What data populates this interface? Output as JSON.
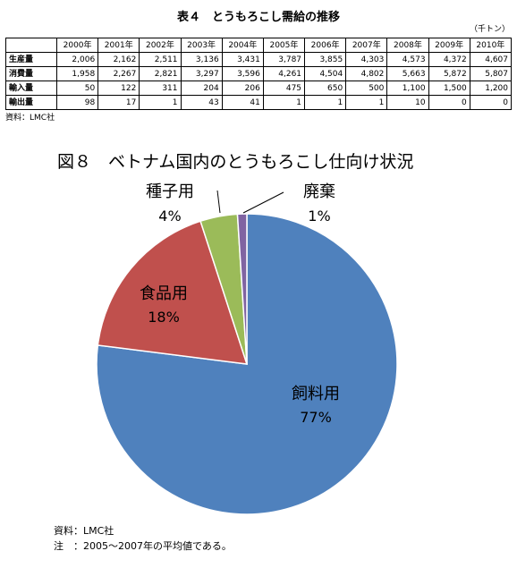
{
  "table": {
    "title": "表４　とうもろこし需給の推移",
    "unit": "（千トン）",
    "years": [
      "2000年",
      "2001年",
      "2002年",
      "2003年",
      "2004年",
      "2005年",
      "2006年",
      "2007年",
      "2008年",
      "2009年",
      "2010年"
    ],
    "rows": [
      {
        "label": "生産量",
        "values": [
          "2,006",
          "2,162",
          "2,511",
          "3,136",
          "3,431",
          "3,787",
          "3,855",
          "4,303",
          "4,573",
          "4,372",
          "4,607"
        ]
      },
      {
        "label": "消費量",
        "values": [
          "1,958",
          "2,267",
          "2,821",
          "3,297",
          "3,596",
          "4,261",
          "4,504",
          "4,802",
          "5,663",
          "5,872",
          "5,807"
        ]
      },
      {
        "label": "輸入量",
        "values": [
          "50",
          "122",
          "311",
          "204",
          "206",
          "475",
          "650",
          "500",
          "1,100",
          "1,500",
          "1,200"
        ]
      },
      {
        "label": "輸出量",
        "values": [
          "98",
          "17",
          "1",
          "43",
          "41",
          "1",
          "1",
          "1",
          "10",
          "0",
          "0"
        ]
      }
    ],
    "source": "資料：LMC社"
  },
  "chart_data": {
    "type": "pie",
    "title": "図８　ベトナム国内のとうもろこし仕向け状況",
    "slices": [
      {
        "name": "飼料用",
        "value": 77,
        "label": "77%",
        "color": "#4F81BD"
      },
      {
        "name": "食品用",
        "value": 18,
        "label": "18%",
        "color": "#C0504D"
      },
      {
        "name": "種子用",
        "value": 4,
        "label": "4%",
        "color": "#9BBB59"
      },
      {
        "name": "廃棄",
        "value": 1,
        "label": "1%",
        "color": "#8064A2"
      }
    ]
  },
  "notes": {
    "source": "資料：LMC社",
    "note": "注　：2005～2007年の平均値である。"
  }
}
